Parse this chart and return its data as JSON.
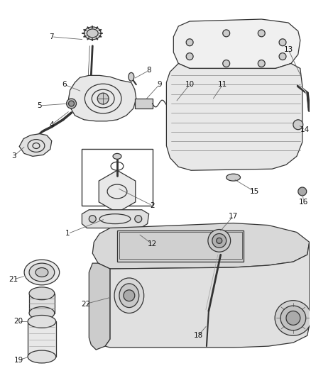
{
  "background_color": "#ffffff",
  "fig_width": 4.38,
  "fig_height": 5.33,
  "dpi": 100,
  "line_color": "#444444",
  "part_color": "#333333",
  "label_color": "#111111",
  "label_fontsize": 7.5,
  "callout_line_color": "#666666",
  "callout_lw": 0.6,
  "part_lw": 0.9
}
